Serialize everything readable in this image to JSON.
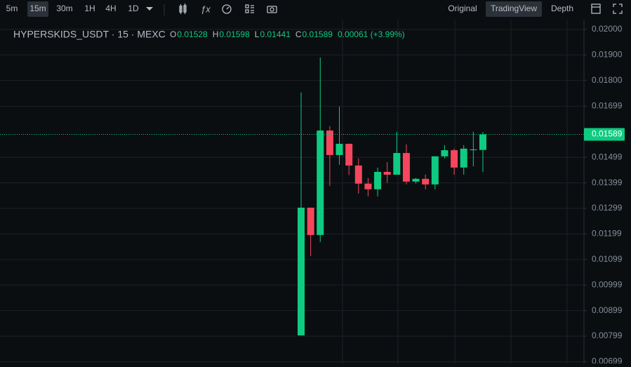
{
  "toolbar": {
    "intervals": [
      "5m",
      "15m",
      "30m",
      "1H",
      "4H",
      "1D"
    ],
    "active_interval": 1,
    "views": [
      "Original",
      "TradingView",
      "Depth"
    ],
    "active_view": 1
  },
  "chart_data": {
    "type": "candlestick",
    "title": "HYPERSKIDS_USDT · 15 · MEXC",
    "ohlc_labels": [
      "O",
      "H",
      "L",
      "C"
    ],
    "change_label": "0.00061 (+3.99%)",
    "categories": [
      null,
      null,
      null,
      null,
      null,
      null,
      null,
      null,
      null,
      null,
      null,
      null,
      null,
      null,
      null,
      null,
      null,
      null,
      null,
      null
    ],
    "series": {
      "open": [
        0.00802,
        0.01302,
        0.01195,
        0.01604,
        0.01508,
        0.01552,
        0.01467,
        0.01396,
        0.01374,
        0.01442,
        0.01431,
        0.01516,
        0.01404,
        0.01415,
        0.01393,
        0.01503,
        0.01527,
        0.01459,
        0.01527,
        0.01528
      ],
      "high": [
        0.01753,
        0.01302,
        0.0189,
        0.01621,
        0.01698,
        0.01552,
        0.01495,
        0.01418,
        0.01459,
        0.0148,
        0.01599,
        0.0155,
        0.01418,
        0.01432,
        0.01503,
        0.01547,
        0.01533,
        0.01547,
        0.01599,
        0.01598
      ],
      "low": [
        0.00802,
        0.01113,
        0.01168,
        0.01387,
        0.0147,
        0.0143,
        0.01357,
        0.01346,
        0.01346,
        0.01399,
        0.01431,
        0.01393,
        0.01396,
        0.01374,
        0.01374,
        0.01495,
        0.01431,
        0.01431,
        0.01464,
        0.01441
      ],
      "close": [
        0.01302,
        0.01195,
        0.01604,
        0.01508,
        0.01552,
        0.01467,
        0.01396,
        0.01374,
        0.01442,
        0.01431,
        0.01516,
        0.01404,
        0.01415,
        0.01393,
        0.01503,
        0.01527,
        0.01459,
        0.01533,
        0.0153,
        0.01589
      ]
    },
    "up_color": "#0ecb81",
    "down_color": "#f6465d",
    "ylim": [
      0.00692,
      0.02038
    ],
    "yticks": [
      {
        "value": 0.02,
        "label": "0.02000"
      },
      {
        "value": 0.019,
        "label": "0.01900"
      },
      {
        "value": 0.018,
        "label": "0.01800"
      },
      0.01699,
      0.01499,
      0.01399,
      0.01299,
      0.01199,
      0.01099,
      0.00999,
      0.00899,
      0.00799,
      0.00699
    ],
    "grid": true
  }
}
